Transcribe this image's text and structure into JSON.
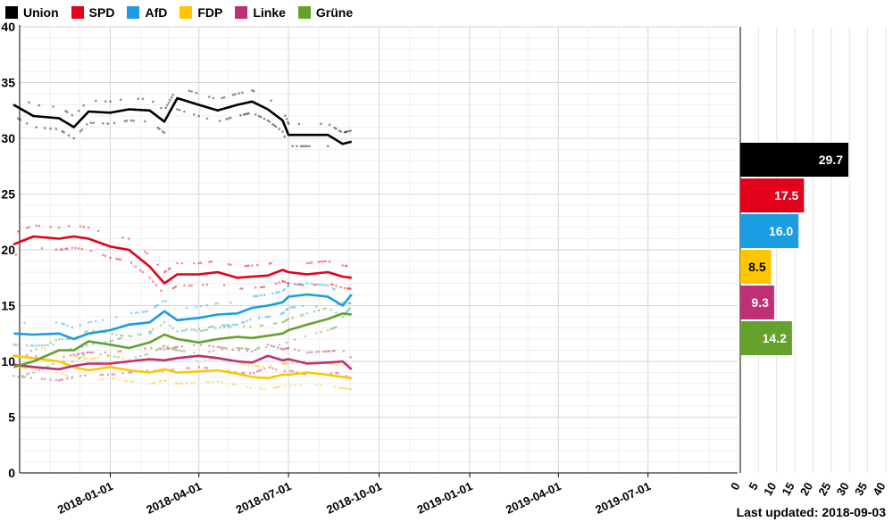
{
  "chart_data": {
    "type": "line",
    "ylim": [
      0,
      40
    ],
    "yticks": [
      0,
      5,
      10,
      15,
      20,
      25,
      30,
      35,
      40
    ],
    "xlim": [
      "2017-10-01",
      "2019-09-30"
    ],
    "xticks": [
      "2018-01-01",
      "2018-04-01",
      "2018-07-01",
      "2018-10-01",
      "2019-01-01",
      "2019-04-01",
      "2019-07-01"
    ],
    "grid": true,
    "legend_position": "top-left",
    "series": [
      {
        "name": "Union",
        "color": "#000000",
        "points": [
          [
            "2017-09-25",
            33.0
          ],
          [
            "2017-10-15",
            32.0
          ],
          [
            "2017-11-10",
            31.8
          ],
          [
            "2017-11-25",
            31.0
          ],
          [
            "2017-12-10",
            32.4
          ],
          [
            "2018-01-01",
            32.3
          ],
          [
            "2018-01-20",
            32.6
          ],
          [
            "2018-02-10",
            32.5
          ],
          [
            "2018-02-25",
            31.5
          ],
          [
            "2018-03-10",
            33.6
          ],
          [
            "2018-04-01",
            33.0
          ],
          [
            "2018-04-20",
            32.5
          ],
          [
            "2018-05-10",
            33.0
          ],
          [
            "2018-05-25",
            33.3
          ],
          [
            "2018-06-10",
            32.6
          ],
          [
            "2018-06-25",
            31.6
          ],
          [
            "2018-07-01",
            30.3
          ],
          [
            "2018-07-20",
            30.3
          ],
          [
            "2018-08-10",
            30.3
          ],
          [
            "2018-08-25",
            29.5
          ],
          [
            "2018-09-03",
            29.7
          ]
        ]
      },
      {
        "name": "SPD",
        "color": "#e3001b",
        "points": [
          [
            "2017-09-25",
            20.5
          ],
          [
            "2017-10-15",
            21.2
          ],
          [
            "2017-11-10",
            21.0
          ],
          [
            "2017-11-25",
            21.2
          ],
          [
            "2017-12-10",
            21.0
          ],
          [
            "2018-01-01",
            20.3
          ],
          [
            "2018-01-20",
            20.0
          ],
          [
            "2018-02-10",
            18.5
          ],
          [
            "2018-02-25",
            17.0
          ],
          [
            "2018-03-10",
            17.8
          ],
          [
            "2018-04-01",
            17.8
          ],
          [
            "2018-04-20",
            18.0
          ],
          [
            "2018-05-10",
            17.5
          ],
          [
            "2018-05-25",
            17.6
          ],
          [
            "2018-06-10",
            17.7
          ],
          [
            "2018-06-25",
            18.2
          ],
          [
            "2018-07-01",
            18.0
          ],
          [
            "2018-07-20",
            17.8
          ],
          [
            "2018-08-10",
            18.0
          ],
          [
            "2018-08-25",
            17.6
          ],
          [
            "2018-09-03",
            17.5
          ]
        ]
      },
      {
        "name": "AfD",
        "color": "#1a9de1",
        "points": [
          [
            "2017-09-25",
            12.5
          ],
          [
            "2017-10-15",
            12.4
          ],
          [
            "2017-11-10",
            12.5
          ],
          [
            "2017-11-25",
            12.0
          ],
          [
            "2017-12-10",
            12.5
          ],
          [
            "2018-01-01",
            12.8
          ],
          [
            "2018-01-20",
            13.3
          ],
          [
            "2018-02-10",
            13.5
          ],
          [
            "2018-02-25",
            14.5
          ],
          [
            "2018-03-10",
            13.7
          ],
          [
            "2018-04-01",
            13.9
          ],
          [
            "2018-04-20",
            14.2
          ],
          [
            "2018-05-10",
            14.3
          ],
          [
            "2018-05-25",
            14.8
          ],
          [
            "2018-06-10",
            15.0
          ],
          [
            "2018-06-25",
            15.3
          ],
          [
            "2018-07-01",
            15.8
          ],
          [
            "2018-07-20",
            16.0
          ],
          [
            "2018-08-10",
            15.8
          ],
          [
            "2018-08-25",
            15.0
          ],
          [
            "2018-09-03",
            16.0
          ]
        ]
      },
      {
        "name": "FDP",
        "color": "#ffc600",
        "points": [
          [
            "2017-09-25",
            10.5
          ],
          [
            "2017-10-15",
            10.3
          ],
          [
            "2017-11-10",
            10.0
          ],
          [
            "2017-11-25",
            9.5
          ],
          [
            "2017-12-10",
            9.2
          ],
          [
            "2018-01-01",
            9.5
          ],
          [
            "2018-01-20",
            9.2
          ],
          [
            "2018-02-10",
            9.0
          ],
          [
            "2018-02-25",
            9.3
          ],
          [
            "2018-03-10",
            9.0
          ],
          [
            "2018-04-01",
            9.1
          ],
          [
            "2018-04-20",
            9.2
          ],
          [
            "2018-05-10",
            8.9
          ],
          [
            "2018-05-25",
            8.6
          ],
          [
            "2018-06-10",
            8.5
          ],
          [
            "2018-06-25",
            8.8
          ],
          [
            "2018-07-01",
            8.8
          ],
          [
            "2018-07-20",
            9.0
          ],
          [
            "2018-08-10",
            8.8
          ],
          [
            "2018-08-25",
            8.6
          ],
          [
            "2018-09-03",
            8.5
          ]
        ]
      },
      {
        "name": "Linke",
        "color": "#be3075",
        "points": [
          [
            "2017-09-25",
            9.7
          ],
          [
            "2017-10-15",
            9.5
          ],
          [
            "2017-11-10",
            9.3
          ],
          [
            "2017-11-25",
            9.6
          ],
          [
            "2017-12-10",
            9.8
          ],
          [
            "2018-01-01",
            9.8
          ],
          [
            "2018-01-20",
            10.0
          ],
          [
            "2018-02-10",
            10.2
          ],
          [
            "2018-02-25",
            10.1
          ],
          [
            "2018-03-10",
            10.3
          ],
          [
            "2018-04-01",
            10.5
          ],
          [
            "2018-04-20",
            10.3
          ],
          [
            "2018-05-10",
            10.0
          ],
          [
            "2018-05-25",
            9.9
          ],
          [
            "2018-06-10",
            10.5
          ],
          [
            "2018-06-25",
            10.1
          ],
          [
            "2018-07-01",
            10.2
          ],
          [
            "2018-07-20",
            9.8
          ],
          [
            "2018-08-10",
            9.9
          ],
          [
            "2018-08-25",
            10.0
          ],
          [
            "2018-09-03",
            9.3
          ]
        ]
      },
      {
        "name": "Grüne",
        "color": "#64a12d",
        "points": [
          [
            "2017-09-25",
            9.5
          ],
          [
            "2017-10-15",
            10.0
          ],
          [
            "2017-11-10",
            11.0
          ],
          [
            "2017-11-25",
            11.0
          ],
          [
            "2017-12-10",
            11.8
          ],
          [
            "2018-01-01",
            11.5
          ],
          [
            "2018-01-20",
            11.2
          ],
          [
            "2018-02-10",
            11.7
          ],
          [
            "2018-02-25",
            12.4
          ],
          [
            "2018-03-10",
            12.0
          ],
          [
            "2018-04-01",
            11.7
          ],
          [
            "2018-04-20",
            12.0
          ],
          [
            "2018-05-10",
            12.2
          ],
          [
            "2018-05-25",
            12.1
          ],
          [
            "2018-06-10",
            12.3
          ],
          [
            "2018-06-25",
            12.5
          ],
          [
            "2018-07-01",
            12.8
          ],
          [
            "2018-07-20",
            13.3
          ],
          [
            "2018-08-10",
            13.8
          ],
          [
            "2018-08-25",
            14.3
          ],
          [
            "2018-09-03",
            14.2
          ]
        ]
      }
    ],
    "current_bars": {
      "xlim": [
        0,
        40
      ],
      "xticks": [
        0,
        5,
        10,
        15,
        20,
        25,
        30,
        35,
        40
      ],
      "bars": [
        {
          "party": "Union",
          "value": 29.7,
          "label": "29.7",
          "color": "#000000",
          "text_color": "#ffffff"
        },
        {
          "party": "SPD",
          "value": 17.5,
          "label": "17.5",
          "color": "#e3001b",
          "text_color": "#ffffff"
        },
        {
          "party": "AfD",
          "value": 16.0,
          "label": "16.0",
          "color": "#1a9de1",
          "text_color": "#ffffff"
        },
        {
          "party": "FDP",
          "value": 8.5,
          "label": "8.5",
          "color": "#ffc600",
          "text_color": "#000000"
        },
        {
          "party": "Linke",
          "value": 9.3,
          "label": "9.3",
          "color": "#be3075",
          "text_color": "#ffffff"
        },
        {
          "party": "Grüne",
          "value": 14.2,
          "label": "14.2",
          "color": "#64a12d",
          "text_color": "#ffffff"
        }
      ]
    }
  },
  "footer": {
    "last_updated_label": "Last updated:",
    "last_updated_value": "2018-09-03"
  }
}
